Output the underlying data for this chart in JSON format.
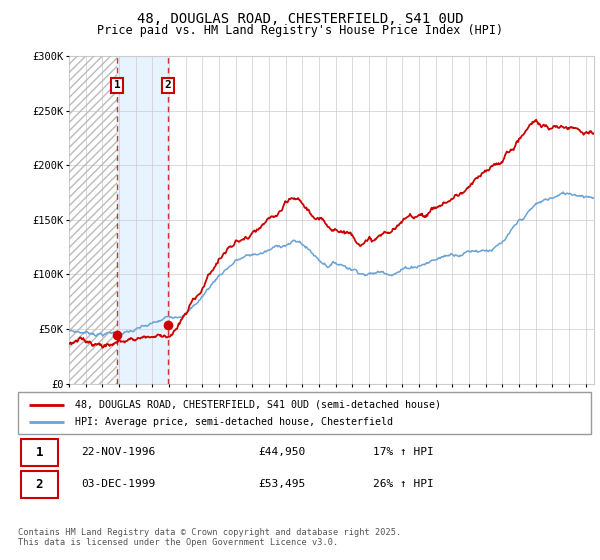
{
  "title": "48, DOUGLAS ROAD, CHESTERFIELD, S41 0UD",
  "subtitle": "Price paid vs. HM Land Registry's House Price Index (HPI)",
  "ylabel_ticks": [
    "£0",
    "£50K",
    "£100K",
    "£150K",
    "£200K",
    "£250K",
    "£300K"
  ],
  "ytick_values": [
    0,
    50000,
    100000,
    150000,
    200000,
    250000,
    300000
  ],
  "ylim": [
    0,
    300000
  ],
  "xlim_start": 1994.0,
  "xlim_end": 2025.5,
  "sale1_date": 1996.9,
  "sale1_price": 44950,
  "sale1_label": "1",
  "sale2_date": 1999.92,
  "sale2_price": 53495,
  "sale2_label": "2",
  "legend_line1": "48, DOUGLAS ROAD, CHESTERFIELD, S41 0UD (semi-detached house)",
  "legend_line2": "HPI: Average price, semi-detached house, Chesterfield",
  "table_row1": [
    "1",
    "22-NOV-1996",
    "£44,950",
    "17% ↑ HPI"
  ],
  "table_row2": [
    "2",
    "03-DEC-1999",
    "£53,495",
    "26% ↑ HPI"
  ],
  "footer": "Contains HM Land Registry data © Crown copyright and database right 2025.\nThis data is licensed under the Open Government Licence v3.0.",
  "hpi_color": "#6ba3d6",
  "price_color": "#CC0000",
  "shade_color": "#ddeeff",
  "grid_color": "#CCCCCC",
  "background_color": "#FFFFFF",
  "hpi_segments": [
    [
      1994.0,
      37000
    ],
    [
      1994.5,
      36500
    ],
    [
      1995.0,
      36000
    ],
    [
      1995.5,
      36500
    ],
    [
      1996.0,
      37000
    ],
    [
      1996.5,
      37500
    ],
    [
      1997.0,
      38500
    ],
    [
      1997.5,
      39000
    ],
    [
      1998.0,
      40000
    ],
    [
      1998.5,
      41500
    ],
    [
      1999.0,
      43000
    ],
    [
      1999.5,
      45000
    ],
    [
      2000.0,
      48000
    ],
    [
      2000.5,
      52000
    ],
    [
      2001.0,
      57000
    ],
    [
      2001.5,
      63000
    ],
    [
      2002.0,
      72000
    ],
    [
      2002.5,
      82000
    ],
    [
      2003.0,
      92000
    ],
    [
      2003.5,
      100000
    ],
    [
      2004.0,
      107000
    ],
    [
      2004.5,
      110000
    ],
    [
      2005.0,
      111000
    ],
    [
      2005.5,
      113000
    ],
    [
      2006.0,
      115000
    ],
    [
      2006.5,
      118000
    ],
    [
      2007.0,
      122000
    ],
    [
      2007.5,
      124000
    ],
    [
      2008.0,
      122000
    ],
    [
      2008.5,
      115000
    ],
    [
      2009.0,
      108000
    ],
    [
      2009.5,
      105000
    ],
    [
      2010.0,
      107000
    ],
    [
      2010.5,
      106000
    ],
    [
      2011.0,
      104000
    ],
    [
      2011.5,
      103000
    ],
    [
      2012.0,
      102000
    ],
    [
      2012.5,
      103000
    ],
    [
      2013.0,
      105000
    ],
    [
      2013.5,
      107000
    ],
    [
      2014.0,
      110000
    ],
    [
      2014.5,
      113000
    ],
    [
      2015.0,
      116000
    ],
    [
      2015.5,
      119000
    ],
    [
      2016.0,
      122000
    ],
    [
      2016.5,
      125000
    ],
    [
      2017.0,
      128000
    ],
    [
      2017.5,
      131000
    ],
    [
      2018.0,
      134000
    ],
    [
      2018.5,
      136000
    ],
    [
      2019.0,
      138000
    ],
    [
      2019.5,
      140000
    ],
    [
      2020.0,
      143000
    ],
    [
      2020.5,
      150000
    ],
    [
      2021.0,
      158000
    ],
    [
      2021.5,
      165000
    ],
    [
      2022.0,
      172000
    ],
    [
      2022.5,
      175000
    ],
    [
      2023.0,
      178000
    ],
    [
      2023.5,
      180000
    ],
    [
      2024.0,
      181000
    ],
    [
      2024.5,
      182000
    ],
    [
      2025.0,
      183000
    ],
    [
      2025.5,
      184000
    ]
  ],
  "price_segments": [
    [
      1994.0,
      40000
    ],
    [
      1994.5,
      39500
    ],
    [
      1995.0,
      39000
    ],
    [
      1995.5,
      39500
    ],
    [
      1996.0,
      40000
    ],
    [
      1996.5,
      41000
    ],
    [
      1997.0,
      43000
    ],
    [
      1997.5,
      45000
    ],
    [
      1998.0,
      48000
    ],
    [
      1998.5,
      50000
    ],
    [
      1999.0,
      52000
    ],
    [
      1999.5,
      53000
    ],
    [
      2000.0,
      56000
    ],
    [
      2000.5,
      63000
    ],
    [
      2001.0,
      72000
    ],
    [
      2001.5,
      84000
    ],
    [
      2002.0,
      97000
    ],
    [
      2002.5,
      112000
    ],
    [
      2003.0,
      125000
    ],
    [
      2003.5,
      133000
    ],
    [
      2004.0,
      138000
    ],
    [
      2004.5,
      141000
    ],
    [
      2005.0,
      142000
    ],
    [
      2005.5,
      146000
    ],
    [
      2006.0,
      149000
    ],
    [
      2006.5,
      153000
    ],
    [
      2007.0,
      158000
    ],
    [
      2007.5,
      161000
    ],
    [
      2008.0,
      156000
    ],
    [
      2008.5,
      148000
    ],
    [
      2009.0,
      138000
    ],
    [
      2009.5,
      133000
    ],
    [
      2010.0,
      135000
    ],
    [
      2010.5,
      134000
    ],
    [
      2011.0,
      132000
    ],
    [
      2011.5,
      131000
    ],
    [
      2012.0,
      130000
    ],
    [
      2012.5,
      132000
    ],
    [
      2013.0,
      135000
    ],
    [
      2013.5,
      138000
    ],
    [
      2014.0,
      142000
    ],
    [
      2014.5,
      147000
    ],
    [
      2015.0,
      152000
    ],
    [
      2015.5,
      156000
    ],
    [
      2016.0,
      160000
    ],
    [
      2016.5,
      165000
    ],
    [
      2017.0,
      169000
    ],
    [
      2017.5,
      174000
    ],
    [
      2018.0,
      178000
    ],
    [
      2018.5,
      182000
    ],
    [
      2019.0,
      186000
    ],
    [
      2019.5,
      190000
    ],
    [
      2020.0,
      196000
    ],
    [
      2020.5,
      207000
    ],
    [
      2021.0,
      218000
    ],
    [
      2021.5,
      228000
    ],
    [
      2022.0,
      236000
    ],
    [
      2022.5,
      232000
    ],
    [
      2023.0,
      228000
    ],
    [
      2023.5,
      229000
    ],
    [
      2024.0,
      231000
    ],
    [
      2024.5,
      233000
    ],
    [
      2025.0,
      234000
    ],
    [
      2025.5,
      235000
    ]
  ]
}
